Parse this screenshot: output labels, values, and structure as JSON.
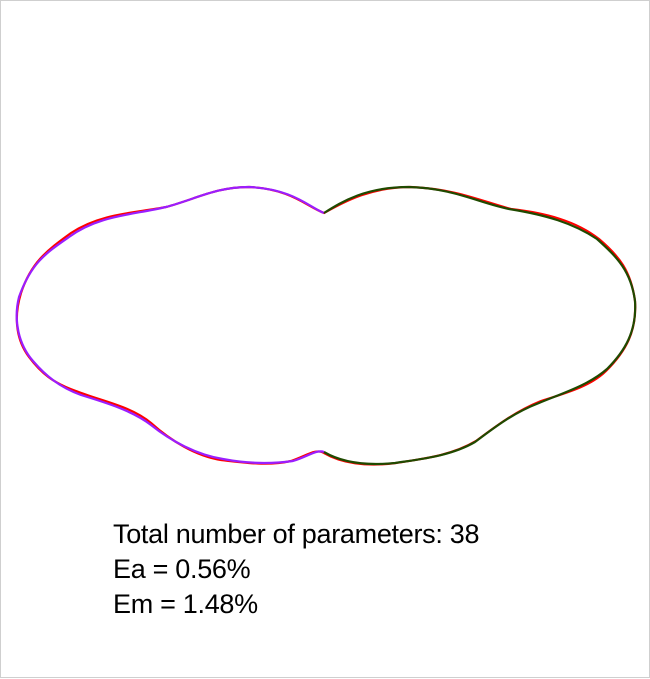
{
  "stats": {
    "parameters_line": "Total number of parameters: 38",
    "ea_line": "Ea = 0.56%",
    "em_line": "Em = 1.48%"
  },
  "colors": {
    "reference_outline": "#ff0000",
    "left_fit": "#9a1eff",
    "right_fit": "#1f4a00",
    "frame_border": "#cfcfcf"
  },
  "figure": {
    "shape": "symmetric lobed closed contour (two bulges with a central notch at top and bottom)",
    "curves": [
      "reference-outline",
      "left-half-fit",
      "right-half-fit"
    ]
  }
}
